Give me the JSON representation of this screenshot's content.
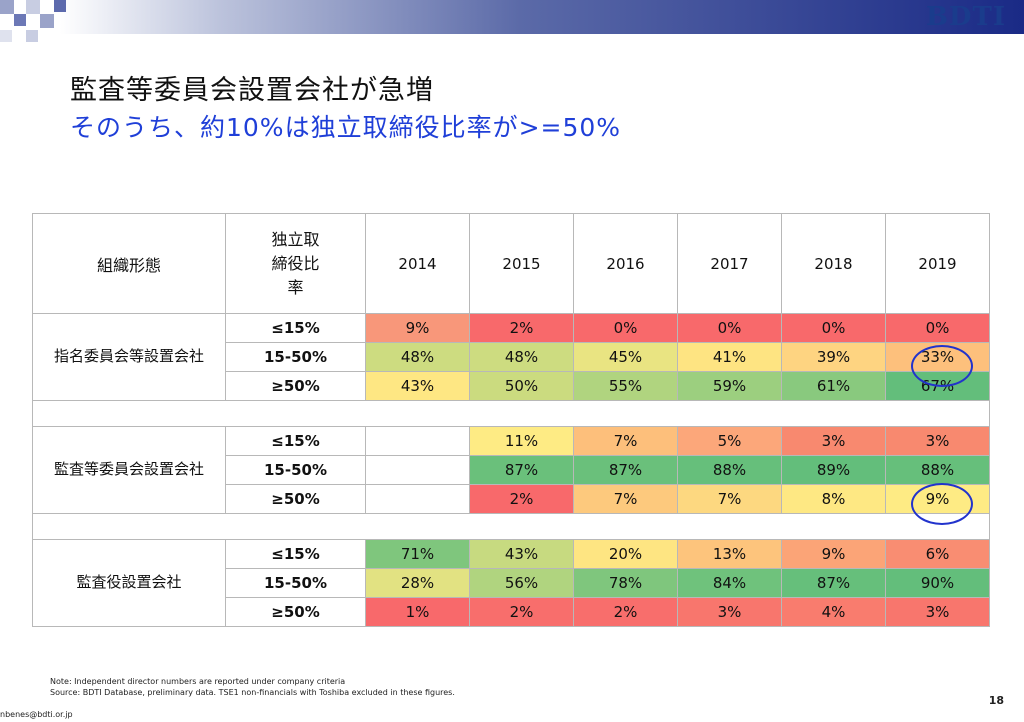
{
  "header": {
    "logo": "BDTI"
  },
  "title": "監査等委員会設置会社が急増",
  "subtitle": "そのうち、約10%は独立取締役比率が>=50%",
  "table": {
    "col_group": "組織形態",
    "col_ratio": "独立取締役比率",
    "years": [
      "2014",
      "2015",
      "2016",
      "2017",
      "2018",
      "2019"
    ],
    "groups": [
      {
        "label": "指名委員会等設置会社",
        "rows": [
          {
            "ratio": "≤15%",
            "values": [
              "9%",
              "2%",
              "0%",
              "0%",
              "0%",
              "0%"
            ],
            "colors": [
              "#f8977a",
              "#f8696b",
              "#f8696b",
              "#f8696b",
              "#f8696b",
              "#f8696b"
            ]
          },
          {
            "ratio": "15-50%",
            "values": [
              "48%",
              "48%",
              "45%",
              "41%",
              "39%",
              "33%"
            ],
            "colors": [
              "#cddc80",
              "#cddc80",
              "#e9e482",
              "#fee482",
              "#fed481",
              "#fdc07c"
            ]
          },
          {
            "ratio": "≥50%",
            "values": [
              "43%",
              "50%",
              "55%",
              "59%",
              "61%",
              "67%"
            ],
            "colors": [
              "#fee783",
              "#cbdb7f",
              "#b0d47f",
              "#9ccf7f",
              "#89c97e",
              "#63be7b"
            ]
          }
        ]
      },
      {
        "label": "監査等委員会設置会社",
        "rows": [
          {
            "ratio": "≤15%",
            "values": [
              "",
              "11%",
              "7%",
              "5%",
              "3%",
              "3%"
            ],
            "colors": [
              "#ffffff",
              "#feeb84",
              "#fdbf7b",
              "#fca77a",
              "#f8896f",
              "#f8896f"
            ]
          },
          {
            "ratio": "15-50%",
            "values": [
              "",
              "87%",
              "87%",
              "88%",
              "89%",
              "88%"
            ],
            "colors": [
              "#ffffff",
              "#6ac07b",
              "#6ac07b",
              "#66bf7b",
              "#63be7b",
              "#66bf7b"
            ]
          },
          {
            "ratio": "≥50%",
            "values": [
              "",
              "2%",
              "7%",
              "7%",
              "8%",
              "9%"
            ],
            "colors": [
              "#ffffff",
              "#f8696b",
              "#fdc97d",
              "#fdd880",
              "#fee883",
              "#feeb84"
            ]
          }
        ]
      },
      {
        "label": "監査役設置会社",
        "rows": [
          {
            "ratio": "≤15%",
            "values": [
              "71%",
              "43%",
              "20%",
              "13%",
              "9%",
              "6%"
            ],
            "colors": [
              "#7fc67d",
              "#c7da80",
              "#fee582",
              "#fdc47c",
              "#fba477",
              "#f98d72"
            ]
          },
          {
            "ratio": "15-50%",
            "values": [
              "28%",
              "56%",
              "78%",
              "84%",
              "87%",
              "90%"
            ],
            "colors": [
              "#e2e282",
              "#b0d47f",
              "#7fc67d",
              "#6fc27c",
              "#66bf7b",
              "#63be7b"
            ]
          },
          {
            "ratio": "≥50%",
            "values": [
              "1%",
              "2%",
              "2%",
              "3%",
              "4%",
              "3%"
            ],
            "colors": [
              "#f8696b",
              "#f86e6c",
              "#f86e6c",
              "#f8766d",
              "#f97c6e",
              "#f8766d"
            ]
          }
        ]
      }
    ]
  },
  "notes": {
    "line1": "Note: Independent director numbers are reported under company criteria",
    "line2": "Source: BDTI Database, preliminary data. TSE1 non-financials with Toshiba excluded in these figures."
  },
  "footer": {
    "email": "nbenes@bdti.or.jp",
    "page": "18"
  }
}
